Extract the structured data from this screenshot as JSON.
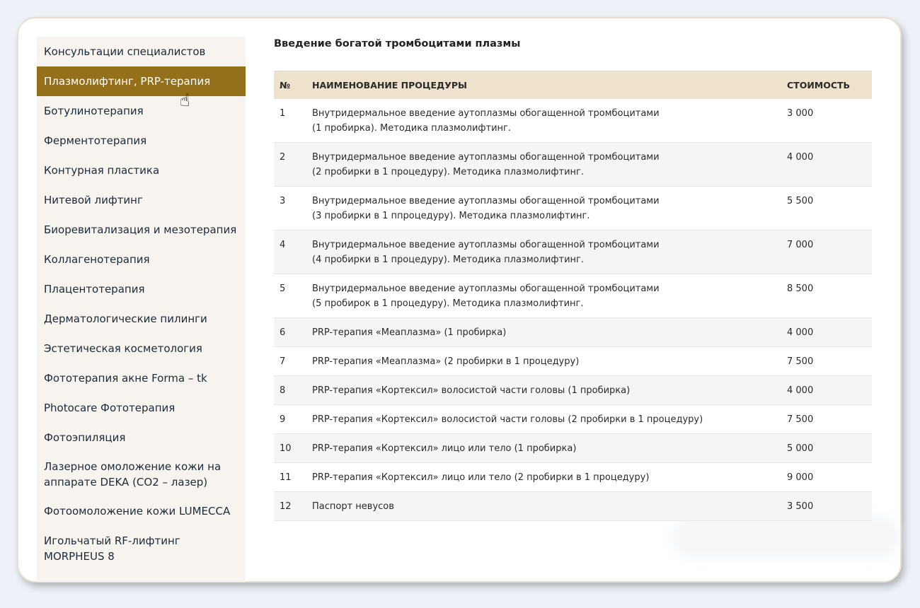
{
  "sidebar": {
    "items": [
      {
        "label": "Консультации специалистов"
      },
      {
        "label": "Плазмолифтинг, PRP-терапия",
        "active": true
      },
      {
        "label": "Ботулинотерапия"
      },
      {
        "label": "Ферментотерапия"
      },
      {
        "label": "Контурная пластика"
      },
      {
        "label": "Нитевой лифтинг"
      },
      {
        "label": "Биоревитализация и мезотерапия"
      },
      {
        "label": "Коллагенотерапия"
      },
      {
        "label": "Плацентотерапия"
      },
      {
        "label": "Дерматологические пилинги"
      },
      {
        "label": "Эстетическая косметология"
      },
      {
        "label": "Фототерапия акне Forma – tk"
      },
      {
        "label": "Photocare Фототерапия"
      },
      {
        "label": "Фотоэпиляция"
      },
      {
        "label": "Лазерное омоложение кожи на аппарате DEKA (CO2 – лазер)"
      },
      {
        "label": "Фотоомоложение кожи LUMECCA"
      },
      {
        "label": "Игольчатый RF-лифтинг MORPHEUS 8"
      }
    ]
  },
  "main": {
    "title": "Введение богатой тромбоцитами плазмы",
    "columns": [
      "№",
      "НАИМЕНОВАНИЕ ПРОЦЕДУРЫ",
      "СТОИМОСТЬ"
    ],
    "rows": [
      {
        "n": "1",
        "name": "Внутридермальное введение аутоплазмы обогащенной тромбоцитами",
        "name2": "(1 пробирка). Методика плазмолифтинг.",
        "price": "3 000"
      },
      {
        "n": "2",
        "name": "Внутридермальное введение аутоплазмы обогащенной тромбоцитами",
        "name2": "(2 пробирки в 1 процедуру). Методика плазмолифтинг.",
        "price": "4 000"
      },
      {
        "n": "3",
        "name": "Внутридермальное введение аутоплазмы обогащенной тромбоцитами",
        "name2": "(3 пробирки в 1 ппроцедуру). Методика плазмолифтинг.",
        "price": "5 500"
      },
      {
        "n": "4",
        "name": "Внутридермальное введение аутоплазмы обогащенной тромбоцитами",
        "name2": "(4 пробирки в 1 процедуру). Методика плазмолифтинг.",
        "price": "7 000"
      },
      {
        "n": "5",
        "name": "Внутридермальное введение аутоплазмы обогащенной тромбоцитами",
        "name2": "(5 пробирок в 1 процедуру). Методика плазмолифтинг.",
        "price": "8 500"
      },
      {
        "n": "6",
        "name": "PRP-терапия «Меаплазма» (1 пробирка)",
        "price": "4 000"
      },
      {
        "n": "7",
        "name": "PRP-терапия «Меаплазма» (2 пробирки в 1 процедуру)",
        "price": "7 500"
      },
      {
        "n": "8",
        "name": "PRP-терапия «Кортексил» волосистой части головы (1 пробирка)",
        "price": "4 000"
      },
      {
        "n": "9",
        "name": "PRP-терапия «Кортексил» волосистой части головы (2 пробирки в 1 процедуру)",
        "price": "7 500"
      },
      {
        "n": "10",
        "name": "PRP-терапия «Кортексил» лицо или тело (1 пробирка)",
        "price": "5 000"
      },
      {
        "n": "11",
        "name": "PRP-терапия «Кортексил» лицо или тело (2 пробирки в 1 процедуру)",
        "price": "9 000"
      },
      {
        "n": "12",
        "name": "Паспорт невусов",
        "price": "3 500"
      }
    ]
  },
  "colors": {
    "active": "#94701a",
    "header": "#efe2cc",
    "sidebar_bg": "#f7f3ee"
  },
  "icons": {
    "cursor": "hand-pointer-icon"
  }
}
